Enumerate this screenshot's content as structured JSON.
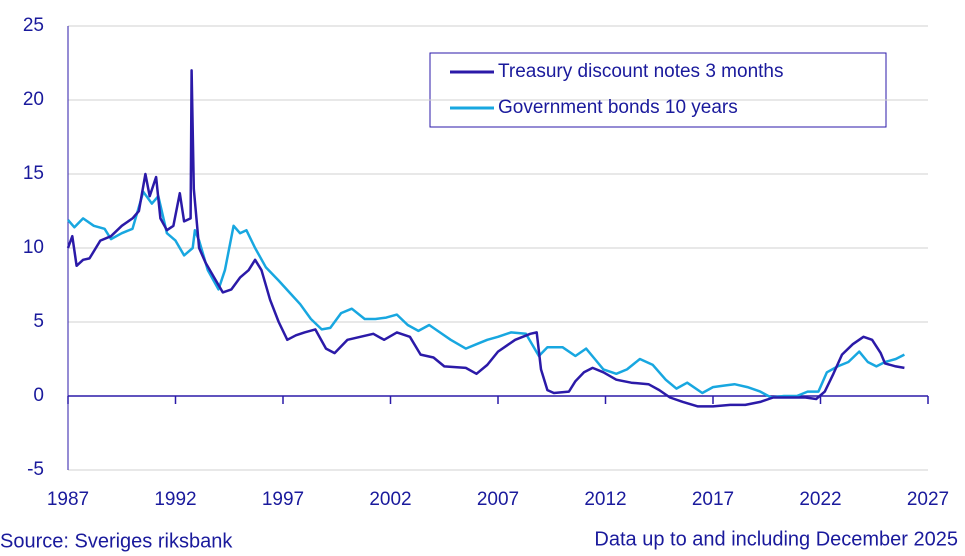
{
  "chart_data": {
    "type": "line",
    "xlim": [
      1987,
      2027
    ],
    "xticks": [
      1987,
      1992,
      1997,
      2002,
      2007,
      2012,
      2017,
      2022,
      2027
    ],
    "ylim": [
      -5,
      25
    ],
    "yticks": [
      -5,
      0,
      5,
      10,
      15,
      20,
      25
    ],
    "grid": true,
    "series": [
      {
        "name": "Treasury discount notes 3 months",
        "color": "#2b1aa8",
        "x": [
          1987.0,
          1987.2,
          1987.4,
          1987.7,
          1988.0,
          1988.5,
          1989.0,
          1989.5,
          1990.0,
          1990.3,
          1990.6,
          1990.8,
          1991.1,
          1991.3,
          1991.6,
          1991.9,
          1992.2,
          1992.4,
          1992.7,
          1992.75,
          1992.85,
          1993.1,
          1993.4,
          1993.8,
          1994.2,
          1994.6,
          1995.0,
          1995.4,
          1995.7,
          1996.0,
          1996.4,
          1996.8,
          1997.2,
          1997.6,
          1998.0,
          1998.5,
          1999.0,
          1999.4,
          2000.0,
          2000.6,
          2001.2,
          2001.7,
          2002.3,
          2002.9,
          2003.4,
          2004.0,
          2004.5,
          2005.5,
          2006.0,
          2006.5,
          2007.0,
          2007.8,
          2008.5,
          2008.8,
          2009.0,
          2009.3,
          2009.6,
          2010.3,
          2010.6,
          2011.0,
          2011.4,
          2011.9,
          2012.5,
          2013.2,
          2014.0,
          2014.5,
          2015.0,
          2015.6,
          2016.3,
          2017.0,
          2017.8,
          2018.5,
          2019.2,
          2019.8,
          2020.6,
          2021.3,
          2021.8,
          2022.2,
          2022.6,
          2023.0,
          2023.5,
          2024.0,
          2024.4,
          2024.8,
          2025.0,
          2025.5,
          2025.9
        ],
        "values": [
          10.0,
          10.8,
          8.8,
          9.2,
          9.3,
          10.5,
          10.8,
          11.5,
          12.0,
          12.5,
          15.0,
          13.5,
          14.8,
          12.0,
          11.2,
          11.5,
          13.7,
          11.8,
          12.0,
          22.0,
          14.0,
          10.0,
          9.0,
          8.0,
          7.0,
          7.2,
          8.0,
          8.5,
          9.2,
          8.5,
          6.5,
          5.0,
          3.8,
          4.1,
          4.3,
          4.5,
          3.2,
          2.9,
          3.8,
          4.0,
          4.2,
          3.8,
          4.3,
          4.0,
          2.8,
          2.6,
          2.0,
          1.9,
          1.5,
          2.1,
          3.0,
          3.8,
          4.2,
          4.3,
          1.8,
          0.4,
          0.2,
          0.3,
          1.0,
          1.6,
          1.9,
          1.6,
          1.1,
          0.9,
          0.8,
          0.4,
          -0.1,
          -0.4,
          -0.7,
          -0.7,
          -0.6,
          -0.6,
          -0.4,
          -0.1,
          -0.1,
          -0.1,
          -0.2,
          0.3,
          1.5,
          2.8,
          3.5,
          4.0,
          3.8,
          2.9,
          2.2,
          2.0,
          1.9
        ]
      },
      {
        "name": "Government bonds 10 years",
        "color": "#18a7e0",
        "x": [
          1987.0,
          1987.3,
          1987.7,
          1988.2,
          1988.7,
          1989.0,
          1989.5,
          1990.0,
          1990.5,
          1990.9,
          1991.2,
          1991.6,
          1992.0,
          1992.4,
          1992.8,
          1992.9,
          1993.1,
          1993.5,
          1994.0,
          1994.3,
          1994.7,
          1995.0,
          1995.3,
          1995.7,
          1996.2,
          1996.8,
          1997.3,
          1997.8,
          1998.3,
          1998.8,
          1999.2,
          1999.7,
          2000.2,
          2000.8,
          2001.3,
          2001.8,
          2002.3,
          2002.8,
          2003.3,
          2003.8,
          2004.3,
          2004.8,
          2005.5,
          2006.0,
          2006.5,
          2007.0,
          2007.6,
          2008.3,
          2008.9,
          2009.3,
          2010.0,
          2010.6,
          2011.1,
          2011.5,
          2011.9,
          2012.5,
          2013.0,
          2013.6,
          2014.2,
          2014.8,
          2015.3,
          2015.8,
          2016.5,
          2017.0,
          2017.5,
          2018.0,
          2018.6,
          2019.2,
          2019.7,
          2020.3,
          2020.9,
          2021.4,
          2021.9,
          2022.3,
          2022.8,
          2023.3,
          2023.8,
          2024.2,
          2024.6,
          2025.0,
          2025.5,
          2025.9
        ],
        "values": [
          11.9,
          11.4,
          12.0,
          11.5,
          11.3,
          10.6,
          11.0,
          11.3,
          13.8,
          13.0,
          13.5,
          11.0,
          10.5,
          9.5,
          10.0,
          11.2,
          10.5,
          8.5,
          7.2,
          8.5,
          11.5,
          11.0,
          11.2,
          10.0,
          8.7,
          7.8,
          7.0,
          6.2,
          5.2,
          4.5,
          4.6,
          5.6,
          5.9,
          5.2,
          5.2,
          5.3,
          5.5,
          4.8,
          4.4,
          4.8,
          4.3,
          3.8,
          3.2,
          3.5,
          3.8,
          4.0,
          4.3,
          4.2,
          2.7,
          3.3,
          3.3,
          2.7,
          3.2,
          2.5,
          1.8,
          1.5,
          1.8,
          2.5,
          2.1,
          1.1,
          0.5,
          0.9,
          0.2,
          0.6,
          0.7,
          0.8,
          0.6,
          0.3,
          -0.1,
          0.0,
          0.0,
          0.3,
          0.3,
          1.6,
          2.0,
          2.3,
          3.0,
          2.3,
          2.0,
          2.3,
          2.5,
          2.8
        ]
      }
    ],
    "source": "Source: Sveriges riksbank",
    "note": "Data up to and including December 2025"
  }
}
